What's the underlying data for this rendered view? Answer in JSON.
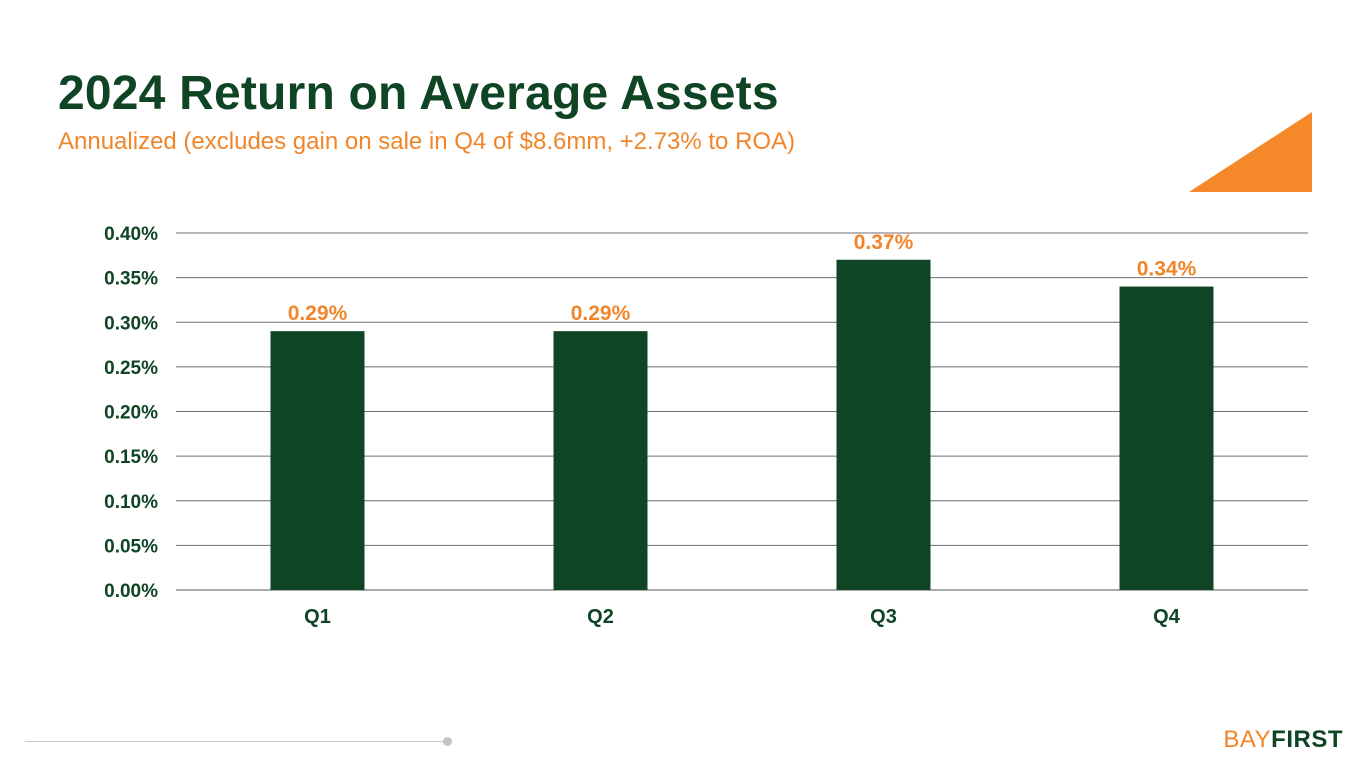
{
  "header": {
    "title": "2024 Return on Average Assets",
    "subtitle": "Annualized (excludes gain on sale in Q4 of $8.6mm, +2.73% to ROA)"
  },
  "brand": {
    "logo_part1": "BAY",
    "logo_part2": "FIRST",
    "accent": "#f0852a",
    "primary": "#0f4424"
  },
  "chart_data": {
    "type": "bar",
    "title": "2024 Return on Average Assets",
    "subtitle": "Annualized (excludes gain on sale in Q4 of $8.6mm, +2.73% to ROA)",
    "categories": [
      "Q1",
      "Q2",
      "Q3",
      "Q4"
    ],
    "values": [
      0.29,
      0.29,
      0.37,
      0.34
    ],
    "data_labels": [
      "0.29%",
      "0.29%",
      "0.37%",
      "0.34%"
    ],
    "yticks": [
      "0.00%",
      "0.05%",
      "0.10%",
      "0.15%",
      "0.20%",
      "0.25%",
      "0.30%",
      "0.35%",
      "0.40%"
    ],
    "ylim": [
      0,
      0.4
    ],
    "ystep": 0.05,
    "xlabel": "",
    "ylabel": "",
    "grid": true,
    "bar_color": "#0f4424",
    "label_color": "#f0852a"
  }
}
